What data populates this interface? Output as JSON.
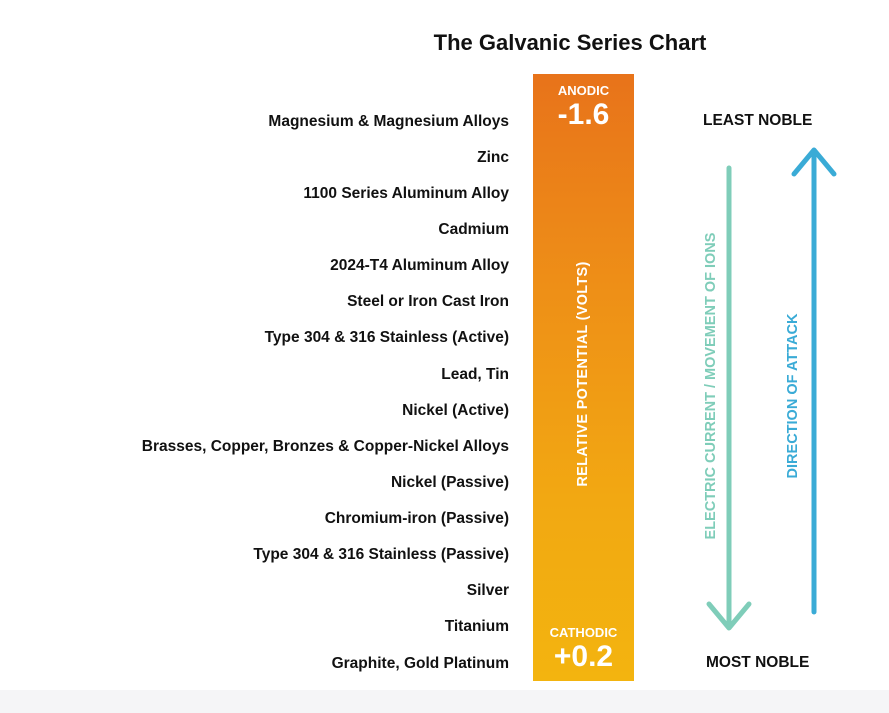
{
  "title": "The Galvanic Series Chart",
  "metals": [
    "Magnesium & Magnesium Alloys",
    "Zinc",
    "1100 Series Aluminum Alloy",
    "Cadmium",
    "2024-T4 Aluminum Alloy",
    "Steel or Iron Cast Iron",
    "Type 304 & 316 Stainless (Active)",
    "Lead, Tin",
    "Nickel (Active)",
    "Brasses, Copper, Bronzes & Copper-Nickel Alloys",
    "Nickel (Passive)",
    "Chromium-iron (Passive)",
    "Type 304 & 316 Stainless (Passive)",
    "Silver",
    "Titanium",
    "Graphite, Gold Platinum"
  ],
  "bar": {
    "top_label": "ANODIC",
    "top_value": "-1.6",
    "bottom_label": "CATHODIC",
    "bottom_value": "+0.2",
    "axis_label": "RELATIVE POTENTIAL (VOLTS)"
  },
  "least_noble": "LEAST NOBLE",
  "most_noble": "MOST NOBLE",
  "current_label": "ELECTRIC CURRENT / MOVEMENT OF IONS",
  "attack_label": "DIRECTION OF ATTACK",
  "colors": {
    "bar_top": "#e8731a",
    "bar_bottom": "#f3b40f",
    "current_arrow": "#7fcdb9",
    "attack_arrow": "#3aabd6"
  }
}
